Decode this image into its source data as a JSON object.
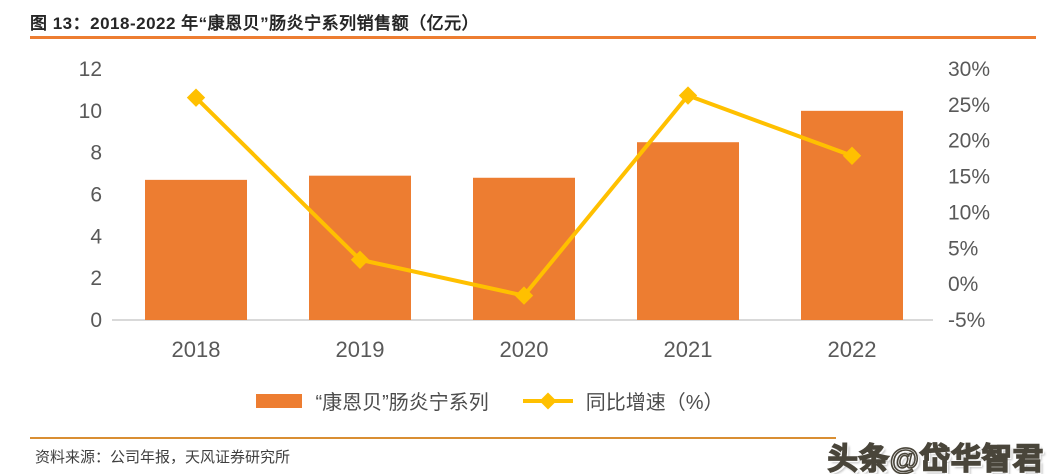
{
  "title": "图 13：2018-2022 年“康恩贝”肠炎宁系列销售额（亿元）",
  "source_note": "资料来源：公司年报，天风证券研究所",
  "watermark": "头条@岱华智君",
  "colors": {
    "bar": "#ED7D31",
    "line": "#FFC000",
    "title_rule": "#ED7D31",
    "footer_rule": "#D98E32",
    "axis_text": "#595959",
    "baseline": "#D9D9D9"
  },
  "legend": [
    {
      "label": "“康恩贝”肠炎宁系列",
      "type": "bar",
      "swatch_icon": "bar-swatch-icon"
    },
    {
      "label": "同比增速（%）",
      "type": "line",
      "swatch_icon": "line-diamond-swatch-icon"
    }
  ],
  "chart_data": {
    "type": "bar",
    "title": "2018-2022 年“康恩贝”肠炎宁系列销售额（亿元）",
    "categories": [
      "2018",
      "2019",
      "2020",
      "2021",
      "2022"
    ],
    "series": [
      {
        "name": "“康恩贝”肠炎宁系列",
        "type": "bar",
        "axis": "left",
        "values": [
          6.7,
          6.9,
          6.8,
          8.5,
          10.0
        ]
      },
      {
        "name": "同比增速（%）",
        "type": "line",
        "axis": "right",
        "values": [
          26.0,
          3.4,
          -1.6,
          26.3,
          17.9
        ]
      }
    ],
    "left_axis": {
      "min": 0,
      "max": 12,
      "tick_values": [
        12,
        10,
        8,
        6,
        4,
        2,
        0
      ],
      "tick_labels": [
        "12",
        "10",
        "8",
        "6",
        "4",
        "2",
        "0"
      ]
    },
    "right_axis": {
      "min": -5,
      "max": 30,
      "tick_values": [
        30,
        25,
        20,
        15,
        10,
        5,
        0,
        -5
      ],
      "tick_labels": [
        "30%",
        "25%",
        "20%",
        "15%",
        "10%",
        "5%",
        "0%",
        "-5%"
      ]
    },
    "grid": false,
    "legend_position": "bottom"
  }
}
